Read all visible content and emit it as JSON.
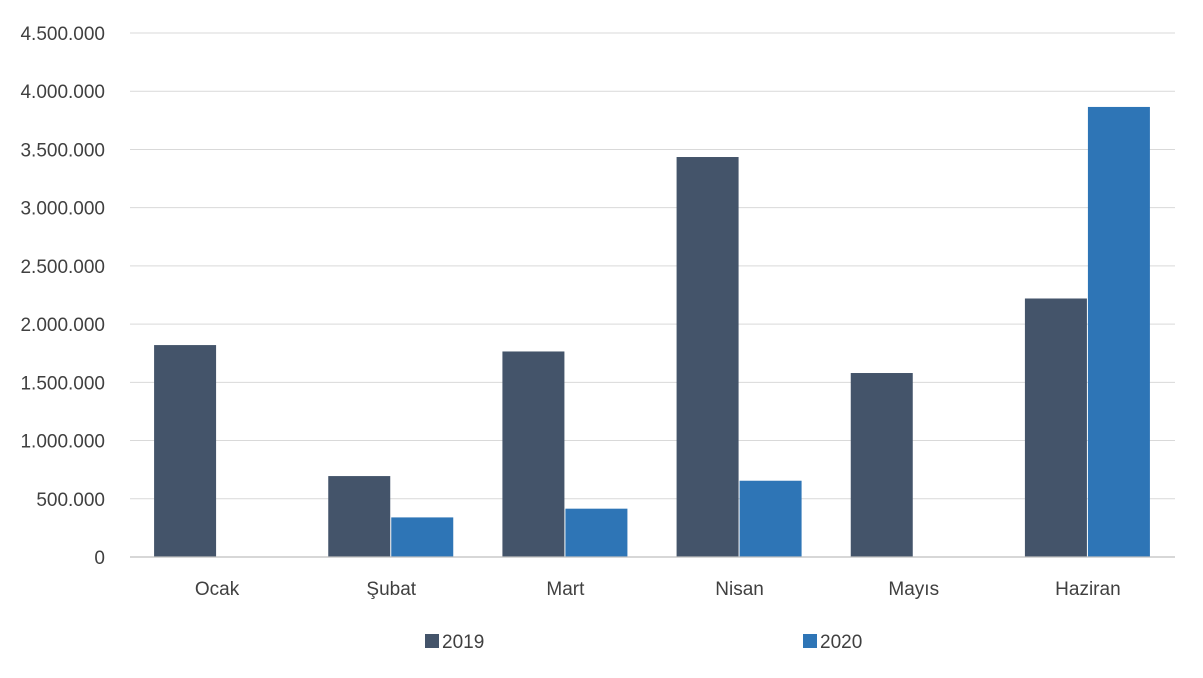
{
  "chart_data": {
    "type": "bar",
    "title": "",
    "xlabel": "",
    "ylabel": "",
    "categories": [
      "Ocak",
      "Şubat",
      "Mart",
      "Nisan",
      "Mayıs",
      "Haziran"
    ],
    "series": [
      {
        "name": "2019",
        "color": "#44546a",
        "values": [
          1820000,
          695000,
          1765000,
          3435000,
          1580000,
          2220000
        ]
      },
      {
        "name": "2020",
        "color": "#2e75b6",
        "values": [
          0,
          340000,
          415000,
          655000,
          0,
          3865000
        ]
      }
    ],
    "ylim": [
      0,
      4500000
    ],
    "yticks": [
      0,
      500000,
      1000000,
      1500000,
      2000000,
      2500000,
      3000000,
      3500000,
      4000000,
      4500000
    ],
    "ytick_labels": [
      "0",
      "500.000",
      "1.000.000",
      "1.500.000",
      "2.000.000",
      "2.500.000",
      "3.000.000",
      "3.500.000",
      "4.000.000",
      "4.500.000"
    ],
    "grid": true,
    "legend_position": "bottom"
  }
}
